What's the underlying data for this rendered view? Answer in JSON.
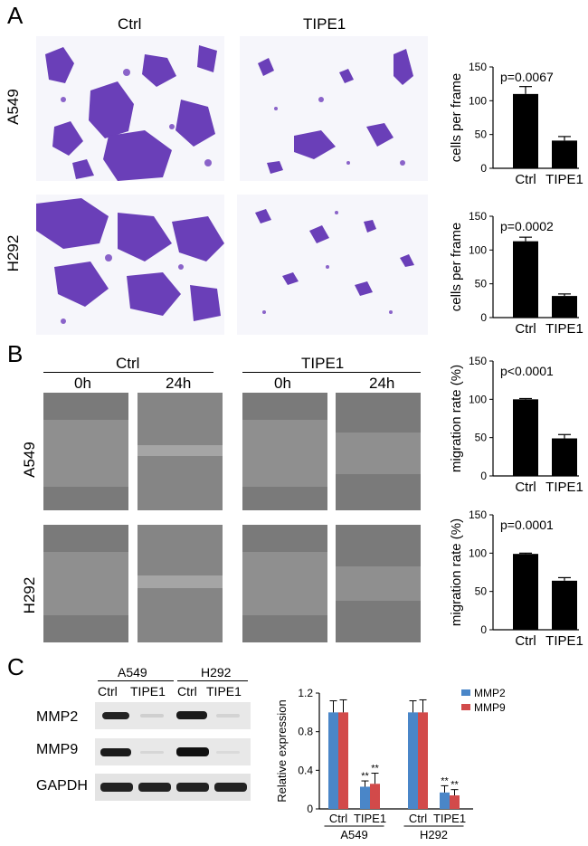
{
  "panels": {
    "a": {
      "letter": "A",
      "col_labels": [
        "Ctrl",
        "TIPE1"
      ],
      "row_labels": [
        "A549",
        "H292"
      ]
    },
    "b": {
      "letter": "B",
      "groups": [
        "Ctrl",
        "TIPE1"
      ],
      "times": [
        "0h",
        "24h",
        "0h",
        "24h"
      ],
      "row_labels": [
        "A549",
        "H292"
      ]
    },
    "c": {
      "letter": "C",
      "blot_groups": [
        "A549",
        "H292"
      ],
      "blot_lanes": [
        "Ctrl",
        "TIPE1",
        "Ctrl",
        "TIPE1"
      ],
      "blot_rows": [
        "MMP2",
        "MMP9",
        "GAPDH"
      ]
    }
  },
  "chart_data": [
    {
      "type": "bar",
      "categories": [
        "Ctrl",
        "TIPE1"
      ],
      "values": [
        110,
        41
      ],
      "errors": [
        11,
        6
      ],
      "ylabel": "cells per frame",
      "ylim": [
        0,
        150
      ],
      "yticks": [
        0,
        50,
        100,
        150
      ],
      "annotation": "p=0.0067"
    },
    {
      "type": "bar",
      "categories": [
        "Ctrl",
        "TIPE1"
      ],
      "values": [
        113,
        32
      ],
      "errors": [
        6,
        3
      ],
      "ylabel": "cells per frame",
      "ylim": [
        0,
        150
      ],
      "yticks": [
        0,
        50,
        100,
        150
      ],
      "annotation": "p=0.0002"
    },
    {
      "type": "bar",
      "categories": [
        "Ctrl",
        "TIPE1"
      ],
      "values": [
        100,
        49
      ],
      "errors": [
        1,
        5
      ],
      "ylabel": "migration rate (%)",
      "ylim": [
        0,
        150
      ],
      "yticks": [
        0,
        50,
        100,
        150
      ],
      "annotation": "p<0.0001"
    },
    {
      "type": "bar",
      "categories": [
        "Ctrl",
        "TIPE1"
      ],
      "values": [
        99,
        64
      ],
      "errors": [
        1,
        4
      ],
      "ylabel": "migration rate (%)",
      "ylim": [
        0,
        150
      ],
      "yticks": [
        0,
        50,
        100,
        150
      ],
      "annotation": "p=0.0001"
    },
    {
      "type": "bar",
      "categories": [
        "Ctrl",
        "TIPE1",
        "Ctrl",
        "TIPE1"
      ],
      "groups": [
        "A549",
        "H292"
      ],
      "series": [
        {
          "name": "MMP2",
          "values": [
            1.0,
            0.23,
            1.0,
            0.17
          ],
          "errors": [
            0.12,
            0.06,
            0.12,
            0.07
          ],
          "color": "#4a86c8"
        },
        {
          "name": "MMP9",
          "values": [
            1.0,
            0.26,
            1.0,
            0.14
          ],
          "errors": [
            0.13,
            0.11,
            0.13,
            0.06
          ],
          "color": "#d24a4a"
        }
      ],
      "sig": [
        "",
        "**",
        "",
        "**"
      ],
      "ylabel": "Relative expression",
      "ylim": [
        0,
        1.2
      ],
      "yticks": [
        "0",
        "0.4",
        "0.8",
        "1.2"
      ]
    }
  ]
}
